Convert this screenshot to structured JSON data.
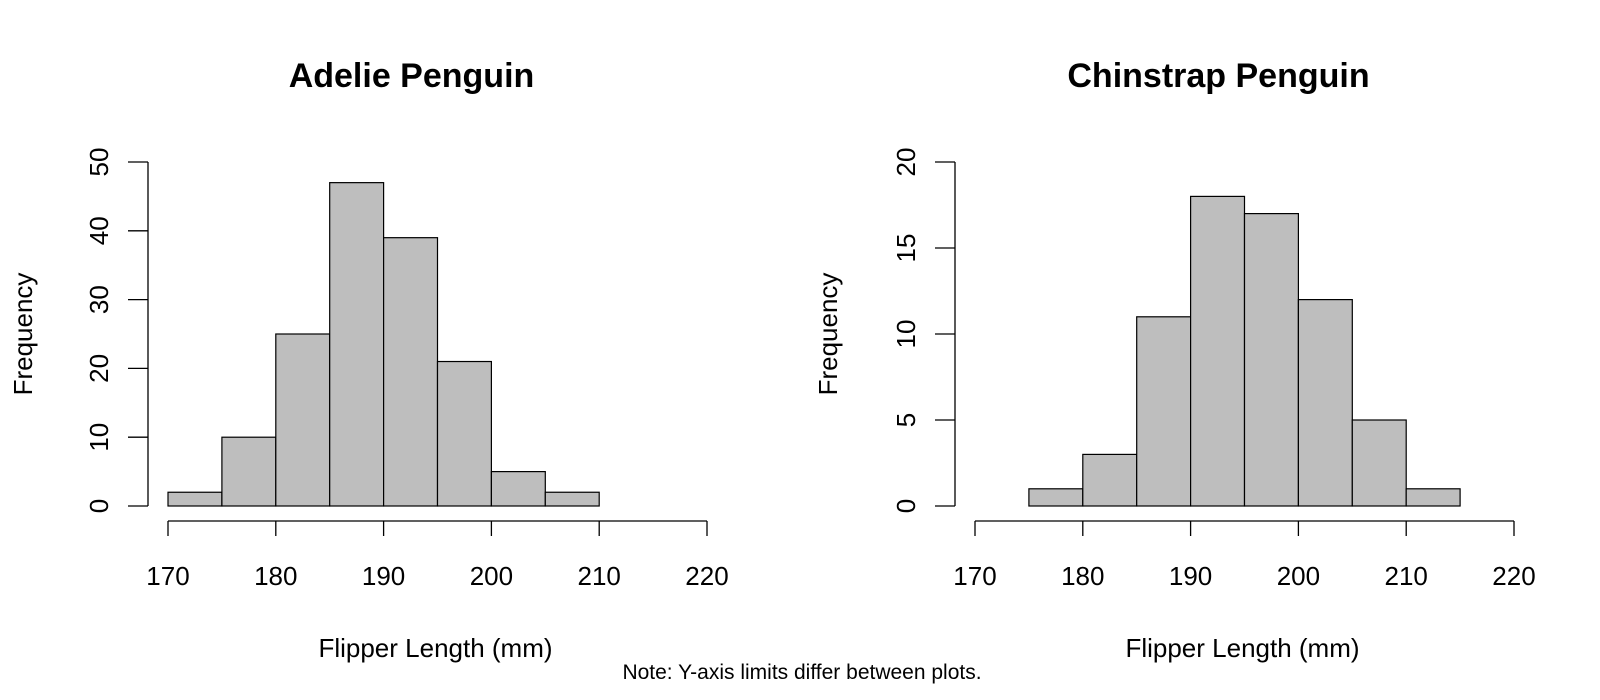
{
  "chart_data": [
    {
      "type": "bar",
      "title": "Adelie Penguin",
      "xlabel": "Flipper Length (mm)",
      "ylabel": "Frequency",
      "xlim": [
        170,
        220
      ],
      "ylim": [
        0,
        50
      ],
      "x_ticks": [
        "170",
        "180",
        "190",
        "200",
        "210",
        "220"
      ],
      "y_ticks": [
        "0",
        "10",
        "20",
        "30",
        "40",
        "50"
      ],
      "bin_width": 5,
      "bins": [
        {
          "start": 170,
          "end": 175,
          "count": 2
        },
        {
          "start": 175,
          "end": 180,
          "count": 10
        },
        {
          "start": 180,
          "end": 185,
          "count": 25
        },
        {
          "start": 185,
          "end": 190,
          "count": 47
        },
        {
          "start": 190,
          "end": 195,
          "count": 39
        },
        {
          "start": 195,
          "end": 200,
          "count": 21
        },
        {
          "start": 200,
          "end": 205,
          "count": 5
        },
        {
          "start": 205,
          "end": 210,
          "count": 2
        }
      ],
      "bar_color": "#bebebe",
      "grid": false
    },
    {
      "type": "bar",
      "title": "Chinstrap Penguin",
      "xlabel": "Flipper Length (mm)",
      "ylabel": "Frequency",
      "xlim": [
        170,
        220
      ],
      "ylim": [
        0,
        20
      ],
      "x_ticks": [
        "170",
        "180",
        "190",
        "200",
        "210",
        "220"
      ],
      "y_ticks": [
        "0",
        "5",
        "10",
        "15",
        "20"
      ],
      "bin_width": 5,
      "bins": [
        {
          "start": 175,
          "end": 180,
          "count": 1
        },
        {
          "start": 180,
          "end": 185,
          "count": 3
        },
        {
          "start": 185,
          "end": 190,
          "count": 11
        },
        {
          "start": 190,
          "end": 195,
          "count": 18
        },
        {
          "start": 195,
          "end": 200,
          "count": 17
        },
        {
          "start": 200,
          "end": 205,
          "count": 12
        },
        {
          "start": 205,
          "end": 210,
          "count": 5
        },
        {
          "start": 210,
          "end": 215,
          "count": 1
        }
      ],
      "bar_color": "#bebebe",
      "grid": false
    }
  ],
  "note": "Note: Y-axis limits differ between plots."
}
